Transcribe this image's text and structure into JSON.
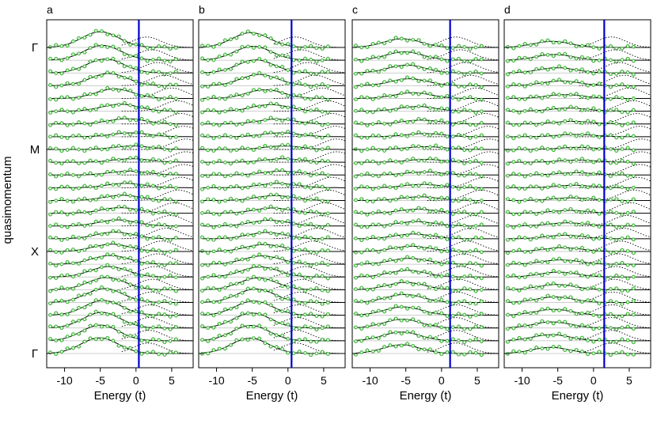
{
  "figure": {
    "ylabel": "quasimomentum",
    "y_ticks": [
      {
        "label": "Γ",
        "row": 0
      },
      {
        "label": "M",
        "row": 8
      },
      {
        "label": "X",
        "row": 16
      },
      {
        "label": "Γ",
        "row": 24
      }
    ]
  },
  "colors": {
    "fit_line": "#000000",
    "secondary_fit": "#000000",
    "data_marker": "#49b943",
    "fermi_line": "#0000cc",
    "baseline": "#bdbdbd"
  },
  "chart_data": [
    {
      "panel": "a",
      "type": "line",
      "xlabel": "Energy (t)",
      "xlim": [
        -12.5,
        8
      ],
      "x_ticks": [
        -10,
        -5,
        0,
        5
      ],
      "x_tick_labels": [
        "-10",
        "-5",
        "0",
        "5"
      ],
      "vertical_line": {
        "x": 0.4
      },
      "row_count": 25,
      "curve_peak_x": [
        -5.0,
        -4.7,
        -4.3,
        -3.8,
        -3.0,
        -2.2,
        -1.3,
        -0.8,
        -0.5,
        -0.6,
        -1.0,
        -1.5,
        -1.9,
        -2.2,
        -2.6,
        -3.0,
        -3.4,
        -3.6,
        -3.8,
        -4.1,
        -4.4,
        -4.6,
        -4.8,
        -5.0,
        -5.1
      ],
      "curve_amplitude": [
        0.9,
        0.85,
        0.8,
        0.7,
        0.55,
        0.4,
        0.3,
        0.22,
        0.2,
        0.2,
        0.22,
        0.25,
        0.3,
        0.32,
        0.35,
        0.38,
        0.42,
        0.5,
        0.6,
        0.7,
        0.8,
        0.85,
        0.9,
        0.9,
        0.9
      ],
      "secondary_peak_x": [
        1.5,
        2.2,
        3.0,
        4.0,
        5.0,
        5.8,
        6.3,
        6.7,
        7.0,
        7.0,
        6.7,
        6.3,
        5.9,
        5.4,
        4.8,
        4.2,
        3.6,
        3.0,
        2.6,
        2.3,
        2.1,
        2.0,
        1.9,
        1.8,
        1.7
      ]
    },
    {
      "panel": "b",
      "type": "line",
      "xlabel": "Energy (t)",
      "xlim": [
        -12.5,
        8
      ],
      "x_ticks": [
        -10,
        -5,
        0,
        5
      ],
      "x_tick_labels": [
        "-10",
        "-5",
        "0",
        "5"
      ],
      "vertical_line": {
        "x": 0.5
      },
      "row_count": 25,
      "curve_peak_x": [
        -5.2,
        -4.9,
        -4.5,
        -4.0,
        -3.2,
        -2.4,
        -1.6,
        -1.0,
        -0.7,
        -0.7,
        -1.0,
        -1.4,
        -1.8,
        -2.2,
        -2.6,
        -3.0,
        -3.3,
        -3.6,
        -3.9,
        -4.2,
        -4.5,
        -4.8,
        -5.0,
        -5.2,
        -5.3
      ],
      "curve_amplitude": [
        0.85,
        0.8,
        0.75,
        0.65,
        0.5,
        0.38,
        0.28,
        0.22,
        0.2,
        0.2,
        0.22,
        0.25,
        0.28,
        0.3,
        0.33,
        0.36,
        0.4,
        0.48,
        0.58,
        0.68,
        0.78,
        0.82,
        0.86,
        0.88,
        0.88
      ],
      "secondary_peak_x": [
        1.0,
        1.8,
        2.8,
        3.8,
        4.8,
        5.6,
        6.2,
        6.6,
        6.8,
        6.8,
        6.5,
        6.1,
        5.7,
        5.2,
        4.7,
        4.1,
        3.5,
        2.9,
        2.4,
        2.0,
        1.7,
        1.5,
        1.3,
        1.2,
        1.1
      ]
    },
    {
      "panel": "c",
      "type": "line",
      "xlabel": "Energy (t)",
      "xlim": [
        -12.5,
        8
      ],
      "x_ticks": [
        -10,
        -5,
        0,
        5
      ],
      "x_tick_labels": [
        "-10",
        "-5",
        "0",
        "5"
      ],
      "vertical_line": {
        "x": 1.2
      },
      "row_count": 25,
      "curve_peak_x": [
        -5.5,
        -5.2,
        -4.9,
        -4.5,
        -4.0,
        -3.4,
        -2.8,
        -2.4,
        -2.2,
        -2.2,
        -2.4,
        -2.7,
        -3.0,
        -3.3,
        -3.6,
        -3.9,
        -4.2,
        -4.5,
        -4.8,
        -5.0,
        -5.2,
        -5.4,
        -5.5,
        -5.6,
        -5.6
      ],
      "curve_amplitude": [
        0.5,
        0.48,
        0.45,
        0.4,
        0.33,
        0.27,
        0.22,
        0.18,
        0.16,
        0.16,
        0.17,
        0.19,
        0.21,
        0.23,
        0.25,
        0.27,
        0.3,
        0.34,
        0.38,
        0.42,
        0.46,
        0.48,
        0.5,
        0.5,
        0.5
      ],
      "secondary_peak_x": [
        2.0,
        2.6,
        3.3,
        4.1,
        4.9,
        5.6,
        6.1,
        6.5,
        6.7,
        6.7,
        6.4,
        6.0,
        5.6,
        5.1,
        4.6,
        4.1,
        3.6,
        3.1,
        2.7,
        2.4,
        2.2,
        2.1,
        2.0,
        2.0,
        2.0
      ]
    },
    {
      "panel": "d",
      "type": "line",
      "xlabel": "Energy (t)",
      "xlim": [
        -12.5,
        8
      ],
      "x_ticks": [
        -10,
        -5,
        0,
        5
      ],
      "x_tick_labels": [
        "-10",
        "-5",
        "0",
        "5"
      ],
      "vertical_line": {
        "x": 1.5
      },
      "row_count": 25,
      "curve_peak_x": [
        -5.8,
        -5.5,
        -5.1,
        -4.6,
        -4.0,
        -3.4,
        -2.9,
        -2.5,
        -2.3,
        -2.3,
        -2.5,
        -2.8,
        -3.1,
        -3.4,
        -3.7,
        -4.0,
        -4.3,
        -4.6,
        -4.9,
        -5.2,
        -5.4,
        -5.6,
        -5.8,
        -5.9,
        -6.0
      ],
      "curve_amplitude": [
        0.35,
        0.33,
        0.3,
        0.27,
        0.22,
        0.18,
        0.15,
        0.13,
        0.12,
        0.12,
        0.13,
        0.14,
        0.15,
        0.16,
        0.18,
        0.2,
        0.22,
        0.25,
        0.28,
        0.3,
        0.32,
        0.34,
        0.35,
        0.35,
        0.35
      ],
      "secondary_peak_x": [
        2.5,
        3.0,
        3.6,
        4.3,
        5.0,
        5.6,
        6.1,
        6.5,
        6.7,
        6.7,
        6.5,
        6.1,
        5.7,
        5.2,
        4.7,
        4.2,
        3.8,
        3.4,
        3.1,
        2.9,
        2.7,
        2.6,
        2.5,
        2.5,
        2.5
      ]
    }
  ]
}
